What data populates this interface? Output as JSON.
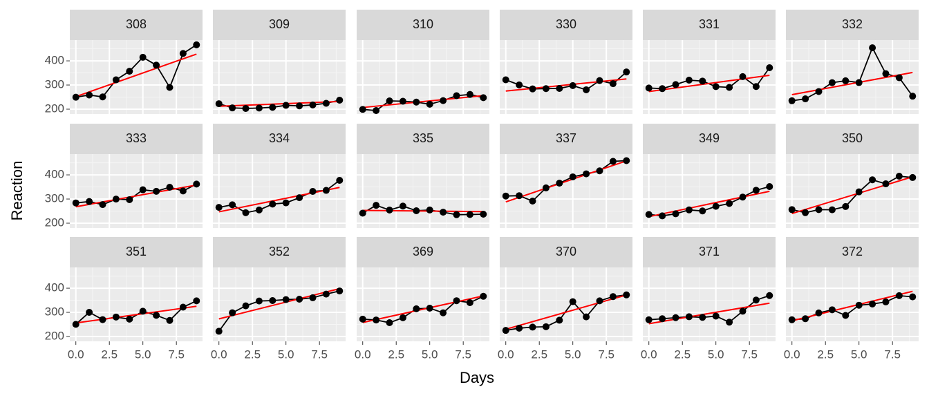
{
  "chart_data": {
    "type": "line",
    "x_label": "Days",
    "y_label": "Reaction",
    "x": [
      0,
      1,
      2,
      3,
      4,
      5,
      6,
      7,
      8,
      9
    ],
    "xlim": [
      -0.45,
      9.45
    ],
    "ylim": [
      180,
      486
    ],
    "xticks": [
      {
        "value": 0,
        "label": "0.0"
      },
      {
        "value": 2.5,
        "label": "2.5"
      },
      {
        "value": 5,
        "label": "5.0"
      },
      {
        "value": 7.5,
        "label": "7.5"
      }
    ],
    "yticks": [
      200,
      300,
      400
    ],
    "grid": true,
    "point_color": "#000000",
    "fit_color": "#ff0000",
    "panels": [
      {
        "title": "308",
        "values": [
          249.6,
          258.7,
          250.8,
          321.4,
          356.9,
          414.7,
          382.2,
          290.1,
          430.6,
          466.4
        ],
        "fit": [
          252,
          428
        ]
      },
      {
        "title": "309",
        "values": [
          222.7,
          205.3,
          203.0,
          204.7,
          207.7,
          216.0,
          213.6,
          217.7,
          224.3,
          237.3
        ],
        "fit": [
          212,
          232
        ]
      },
      {
        "title": "310",
        "values": [
          199.1,
          194.3,
          234.3,
          232.8,
          229.3,
          220.5,
          235.4,
          255.8,
          261.0,
          247.5
        ],
        "fit": [
          207,
          256
        ]
      },
      {
        "title": "330",
        "values": [
          321.5,
          300.4,
          283.9,
          285.1,
          285.8,
          297.6,
          280.2,
          318.3,
          305.4,
          354.0
        ],
        "fit": [
          275,
          325
        ]
      },
      {
        "title": "331",
        "values": [
          287.6,
          285.0,
          301.8,
          320.1,
          316.3,
          293.3,
          290.1,
          334.8,
          293.7,
          371.6
        ],
        "fit": [
          273,
          340
        ]
      },
      {
        "title": "332",
        "values": [
          234.9,
          242.8,
          273.0,
          309.8,
          317.5,
          310.0,
          454.2,
          346.8,
          330.3,
          253.9
        ],
        "fit": [
          260,
          352
        ]
      },
      {
        "title": "333",
        "values": [
          283.8,
          289.6,
          276.8,
          299.8,
          297.2,
          338.2,
          332.0,
          348.8,
          333.4,
          362.0
        ],
        "fit": [
          268,
          358
        ]
      },
      {
        "title": "334",
        "values": [
          265.5,
          276.2,
          243.4,
          254.7,
          279.0,
          284.2,
          305.5,
          331.5,
          335.7,
          377.3
        ],
        "fit": [
          247,
          348
        ]
      },
      {
        "title": "335",
        "values": [
          241.6,
          273.9,
          254.5,
          270.8,
          251.5,
          254.6,
          245.5,
          235.3,
          235.8,
          237.2
        ],
        "fit": [
          253,
          248
        ]
      },
      {
        "title": "337",
        "values": [
          312.4,
          313.8,
          291.6,
          346.1,
          365.7,
          391.8,
          404.3,
          416.7,
          455.9,
          458.9
        ],
        "fit": [
          288,
          458
        ]
      },
      {
        "title": "349",
        "values": [
          236.1,
          230.3,
          238.9,
          254.9,
          250.7,
          269.8,
          281.6,
          308.1,
          336.3,
          351.6
        ],
        "fit": [
          227,
          332
        ]
      },
      {
        "title": "350",
        "values": [
          256.3,
          243.5,
          256.2,
          255.5,
          268.9,
          329.7,
          379.4,
          362.9,
          394.5,
          389.0
        ],
        "fit": [
          240,
          392
        ]
      },
      {
        "title": "351",
        "values": [
          250.5,
          300.1,
          269.9,
          280.6,
          271.8,
          304.6,
          287.7,
          266.6,
          321.5,
          347.6
        ],
        "fit": [
          256,
          325
        ]
      },
      {
        "title": "352",
        "values": [
          221.7,
          298.2,
          326.9,
          346.9,
          348.7,
          352.8,
          354.4,
          360.4,
          375.6,
          388.5
        ],
        "fit": [
          273,
          398
        ]
      },
      {
        "title": "369",
        "values": [
          271.9,
          268.4,
          257.2,
          277.7,
          314.8,
          317.2,
          298.1,
          348.1,
          340.3,
          366.5
        ],
        "fit": [
          258,
          368
        ]
      },
      {
        "title": "370",
        "values": [
          225.3,
          234.5,
          238.9,
          240.5,
          267.5,
          344.2,
          281.1,
          347.6,
          365.2,
          372.2
        ],
        "fit": [
          230,
          372
        ]
      },
      {
        "title": "371",
        "values": [
          269.4,
          273.5,
          277.9,
          281.8,
          279.2,
          284.5,
          259.3,
          304.6,
          350.8,
          369.5
        ],
        "fit": [
          253,
          338
        ]
      },
      {
        "title": "372",
        "values": [
          269.4,
          273.5,
          297.6,
          310.6,
          287.2,
          329.6,
          334.5,
          343.2,
          369.1,
          364.1
        ],
        "fit": [
          265,
          387
        ]
      }
    ]
  }
}
